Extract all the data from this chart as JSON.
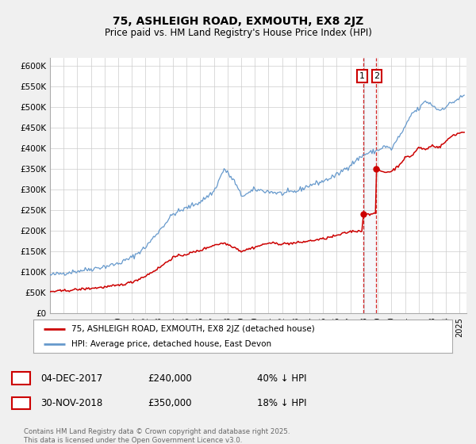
{
  "title": "75, ASHLEIGH ROAD, EXMOUTH, EX8 2JZ",
  "subtitle": "Price paid vs. HM Land Registry's House Price Index (HPI)",
  "legend_line1": "75, ASHLEIGH ROAD, EXMOUTH, EX8 2JZ (detached house)",
  "legend_line2": "HPI: Average price, detached house, East Devon",
  "red_color": "#cc0000",
  "blue_color": "#6699cc",
  "vline_color": "#cc0000",
  "transaction1_date": "04-DEC-2017",
  "transaction1_price": "£240,000",
  "transaction1_hpi": "40% ↓ HPI",
  "transaction1_x": 2017.92,
  "transaction1_y": 240000,
  "transaction2_date": "30-NOV-2018",
  "transaction2_price": "£350,000",
  "transaction2_hpi": "18% ↓ HPI",
  "transaction2_x": 2018.88,
  "transaction2_y": 350000,
  "footer": "Contains HM Land Registry data © Crown copyright and database right 2025.\nThis data is licensed under the Open Government Licence v3.0.",
  "ylim": [
    0,
    620000
  ],
  "yticks": [
    0,
    50000,
    100000,
    150000,
    200000,
    250000,
    300000,
    350000,
    400000,
    450000,
    500000,
    550000,
    600000
  ],
  "xlim_start": 1995.0,
  "xlim_end": 2025.5,
  "background_color": "#f0f0f0",
  "plot_bg_color": "#ffffff",
  "grid_color": "#cccccc",
  "hpi_anchors_x": [
    1995.0,
    1996.0,
    1997.0,
    1998.0,
    1999.0,
    2000.0,
    2001.0,
    2002.0,
    2003.0,
    2004.0,
    2005.0,
    2006.0,
    2007.0,
    2007.75,
    2008.5,
    2009.0,
    2009.5,
    2010.0,
    2011.0,
    2012.0,
    2013.0,
    2014.0,
    2015.0,
    2016.0,
    2017.0,
    2018.0,
    2019.0,
    2019.5,
    2020.0,
    2020.5,
    2021.0,
    2021.5,
    2022.0,
    2022.5,
    2023.0,
    2023.5,
    2024.0,
    2024.5,
    2025.0,
    2025.3
  ],
  "hpi_anchors_y": [
    92000,
    97000,
    102000,
    107000,
    113000,
    120000,
    135000,
    160000,
    200000,
    240000,
    255000,
    270000,
    295000,
    350000,
    320000,
    285000,
    290000,
    300000,
    295000,
    290000,
    295000,
    310000,
    320000,
    335000,
    360000,
    385000,
    395000,
    405000,
    398000,
    425000,
    450000,
    485000,
    495000,
    515000,
    505000,
    492000,
    502000,
    512000,
    522000,
    527000
  ],
  "red_anchors_x": [
    1995.0,
    1996.0,
    1997.0,
    1998.0,
    1999.0,
    2000.0,
    2001.0,
    2002.0,
    2003.0,
    2004.0,
    2005.0,
    2006.0,
    2007.0,
    2007.75,
    2008.5,
    2009.0,
    2009.5,
    2010.0,
    2011.0,
    2012.0,
    2013.0,
    2014.0,
    2015.0,
    2016.0,
    2017.0,
    2017.91,
    2017.92,
    2018.0,
    2018.87,
    2018.88,
    2019.0,
    2019.5,
    2020.0,
    2020.5,
    2021.0,
    2021.5,
    2022.0,
    2022.5,
    2023.0,
    2023.5,
    2024.0,
    2024.5,
    2025.0,
    2025.3
  ],
  "red_anchors_y": [
    52000,
    54000,
    57000,
    60000,
    63000,
    67000,
    75000,
    90000,
    110000,
    135000,
    143000,
    152000,
    165000,
    170000,
    160000,
    150000,
    155000,
    160000,
    170000,
    168000,
    170000,
    175000,
    180000,
    188000,
    198000,
    200000,
    240000,
    242000,
    240000,
    350000,
    347000,
    342000,
    344000,
    357000,
    377000,
    382000,
    402000,
    397000,
    407000,
    402000,
    417000,
    432000,
    437000,
    440000
  ]
}
